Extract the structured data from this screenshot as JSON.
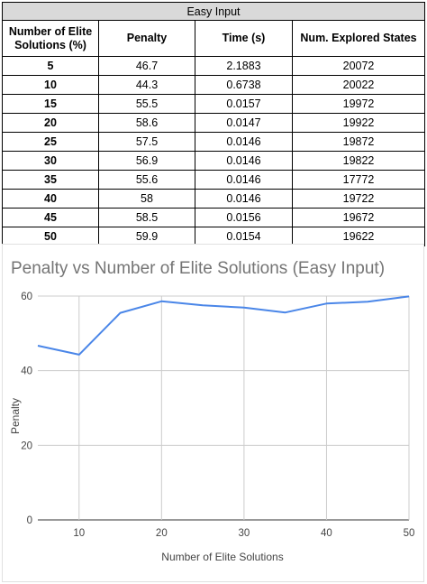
{
  "table": {
    "caption": "Easy Input",
    "headers": [
      "Number of Elite Solutions (%)",
      "Penalty",
      "Time (s)",
      "Num. Explored States"
    ],
    "rows": [
      [
        "5",
        "46.7",
        "2.1883",
        "20072"
      ],
      [
        "10",
        "44.3",
        "0.6738",
        "20022"
      ],
      [
        "15",
        "55.5",
        "0.0157",
        "19972"
      ],
      [
        "20",
        "58.6",
        "0.0147",
        "19922"
      ],
      [
        "25",
        "57.5",
        "0.0146",
        "19872"
      ],
      [
        "30",
        "56.9",
        "0.0146",
        "19822"
      ],
      [
        "35",
        "55.6",
        "0.0146",
        "17772"
      ],
      [
        "40",
        "58",
        "0.0146",
        "19722"
      ],
      [
        "45",
        "58.5",
        "0.0156",
        "19672"
      ],
      [
        "50",
        "59.9",
        "0.0154",
        "19622"
      ]
    ]
  },
  "chart_data": {
    "type": "line",
    "title": "Penalty vs Number of Elite Solutions (Easy Input)",
    "xlabel": "Number of Elite Solutions",
    "ylabel": "Penalty",
    "x": [
      5,
      10,
      15,
      20,
      25,
      30,
      35,
      40,
      45,
      50
    ],
    "series": [
      {
        "values": [
          46.7,
          44.3,
          55.5,
          58.6,
          57.5,
          56.9,
          55.6,
          58,
          58.5,
          59.9
        ],
        "color": "#4a86e8"
      }
    ],
    "xlim": [
      5,
      50
    ],
    "ylim": [
      0,
      60
    ],
    "xticks": [
      10,
      20,
      30,
      40,
      50
    ],
    "yticks": [
      0,
      20,
      40,
      60
    ],
    "grid": true,
    "legend": "none"
  }
}
